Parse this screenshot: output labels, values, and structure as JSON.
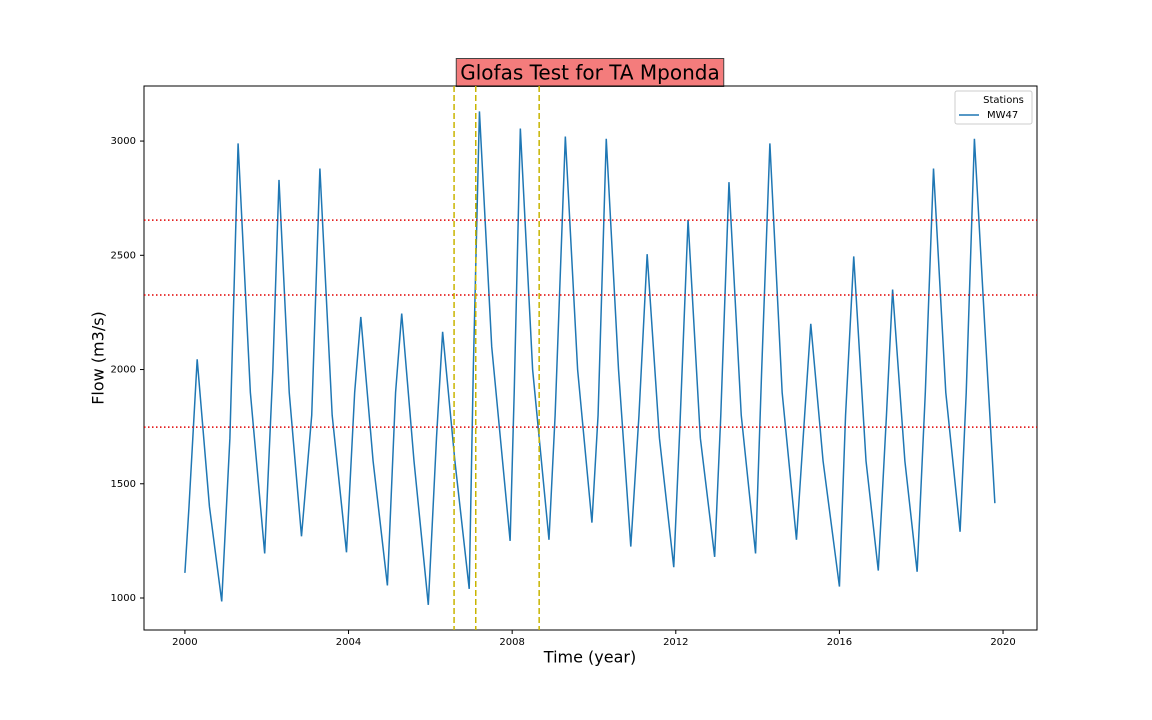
{
  "chart_data": {
    "type": "line",
    "title": "Glofas Test for TA Mponda",
    "title_background": "#f47c7c",
    "xlabel": "Time (year)",
    "ylabel": "Flow (m3/s)",
    "legend_title": "Stations",
    "legend_position": "upper right",
    "xlim": [
      1999.0,
      2020.83
    ],
    "ylim": [
      860,
      3241
    ],
    "xticks": [
      2000,
      2004,
      2008,
      2012,
      2016,
      2020
    ],
    "yticks": [
      1000,
      1500,
      2000,
      2500,
      3000
    ],
    "x": [
      2000.0,
      2000.1,
      2000.3,
      2000.6,
      2000.9,
      2001.1,
      2001.3,
      2001.6,
      2001.95,
      2002.15,
      2002.3,
      2002.55,
      2002.85,
      2003.1,
      2003.3,
      2003.6,
      2003.95,
      2004.15,
      2004.3,
      2004.6,
      2004.95,
      2005.15,
      2005.3,
      2005.6,
      2005.95,
      2006.15,
      2006.3,
      2006.6,
      2006.95,
      2007.05,
      2007.2,
      2007.5,
      2007.95,
      2008.05,
      2008.2,
      2008.5,
      2008.9,
      2009.05,
      2009.3,
      2009.6,
      2009.95,
      2010.1,
      2010.3,
      2010.6,
      2010.9,
      2011.1,
      2011.3,
      2011.6,
      2011.95,
      2012.1,
      2012.3,
      2012.6,
      2012.95,
      2013.1,
      2013.3,
      2013.6,
      2013.95,
      2014.1,
      2014.3,
      2014.6,
      2014.95,
      2015.15,
      2015.3,
      2015.6,
      2016.0,
      2016.15,
      2016.35,
      2016.65,
      2016.95,
      2017.15,
      2017.3,
      2017.6,
      2017.9,
      2018.1,
      2018.3,
      2018.6,
      2018.95,
      2019.1,
      2019.3,
      2019.55,
      2019.8
    ],
    "series": [
      {
        "name": "MW47",
        "color": "#1f77b4",
        "values": [
          1110,
          1400,
          2045,
          1400,
          985,
          1700,
          2990,
          1900,
          1195,
          2000,
          2830,
          1900,
          1270,
          1800,
          2880,
          1800,
          1200,
          1900,
          2230,
          1600,
          1055,
          1900,
          2245,
          1600,
          970,
          1700,
          2165,
          1600,
          1040,
          2000,
          3130,
          2100,
          1250,
          1900,
          3055,
          2000,
          1255,
          1800,
          3020,
          2000,
          1330,
          1800,
          3010,
          2000,
          1225,
          1800,
          2505,
          1700,
          1135,
          1750,
          2655,
          1700,
          1180,
          1800,
          2820,
          1800,
          1195,
          2000,
          2990,
          1900,
          1255,
          1800,
          2200,
          1600,
          1050,
          1800,
          2495,
          1600,
          1120,
          1800,
          2350,
          1600,
          1115,
          1900,
          2880,
          1900,
          1290,
          1900,
          3010,
          2200,
          1415
        ]
      }
    ],
    "hlines": [
      2654,
      2326,
      1748
    ],
    "hline_color": "#e00000",
    "vlines": [
      2006.58,
      2007.11,
      2008.66
    ],
    "vline_color": "#c8b400"
  }
}
